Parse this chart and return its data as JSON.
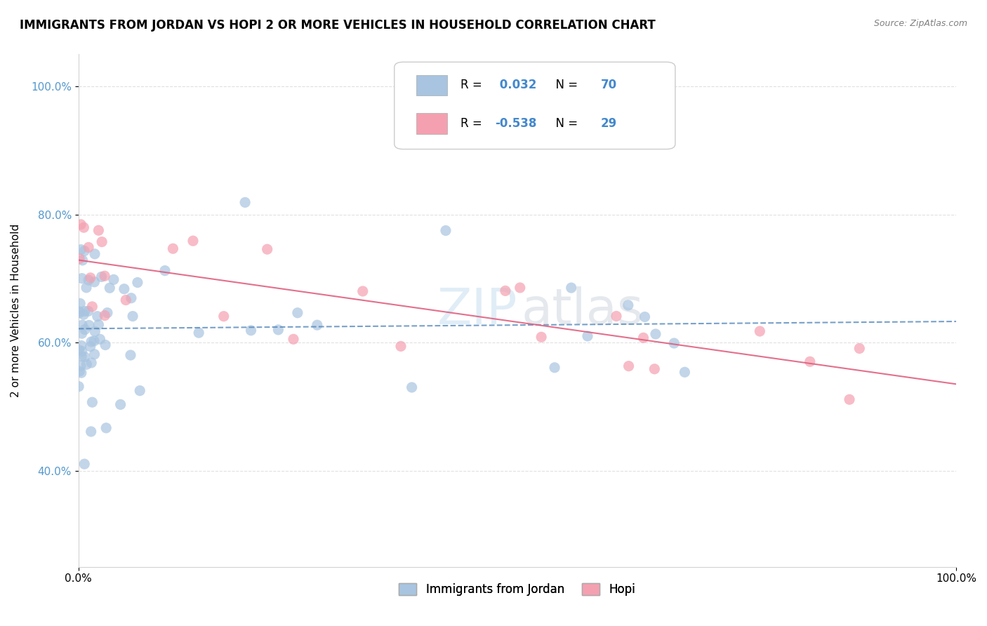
{
  "title": "IMMIGRANTS FROM JORDAN VS HOPI 2 OR MORE VEHICLES IN HOUSEHOLD CORRELATION CHART",
  "source": "Source: ZipAtlas.com",
  "ylabel": "2 or more Vehicles in Household",
  "legend_blue_r": "0.032",
  "legend_blue_n": "70",
  "legend_pink_r": "-0.538",
  "legend_pink_n": "29",
  "legend_label_blue": "Immigrants from Jordan",
  "legend_label_pink": "Hopi",
  "blue_color": "#a8c4e0",
  "pink_color": "#f4a0b0",
  "trendline_blue_color": "#5588bb",
  "trendline_pink_color": "#e06080",
  "xmin": 0.0,
  "xmax": 100.0,
  "ymin": 25.0,
  "ymax": 105.0
}
